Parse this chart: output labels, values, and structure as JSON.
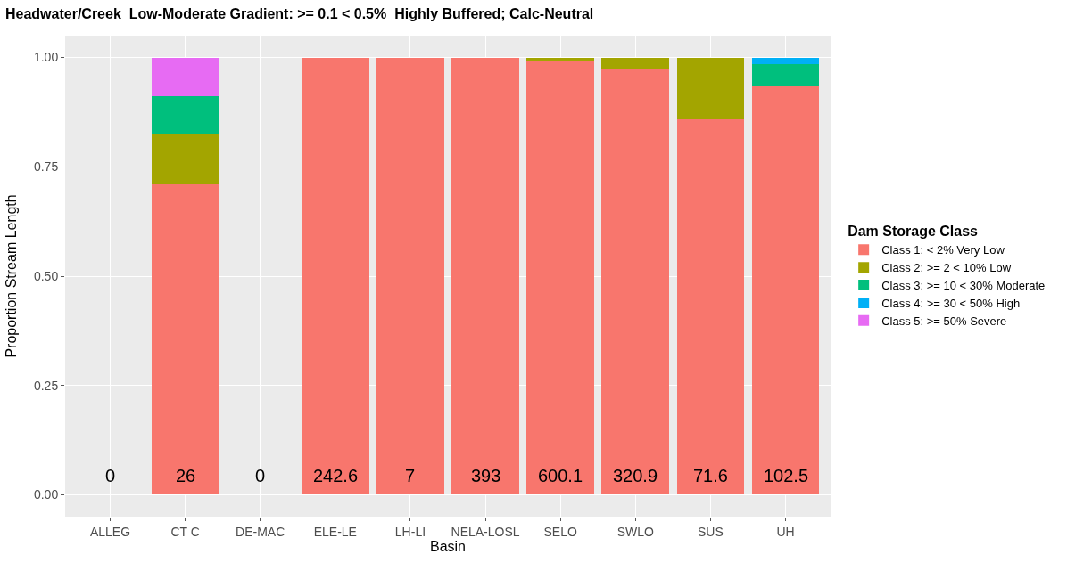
{
  "chart_data": {
    "type": "bar",
    "stacked": true,
    "title": "Headwater/Creek_Low-Moderate Gradient: >= 0.1 < 0.5%_Highly Buffered; Calc-Neutral",
    "xlabel": "Basin",
    "ylabel": "Proportion Stream Length",
    "legend_title": "Dam Storage Class",
    "categories": [
      "ALLEG",
      "CT C",
      "DE-MAC",
      "ELE-LE",
      "LH-LI",
      "NELA-LOSL",
      "SELO",
      "SWLO",
      "SUS",
      "UH"
    ],
    "series": [
      {
        "name": "Class 1: < 2% Very Low",
        "color": "#f8766d",
        "values": [
          null,
          0.71,
          null,
          1.0,
          1.0,
          1.0,
          0.992,
          0.975,
          0.858,
          0.933
        ]
      },
      {
        "name": "Class 2: >= 2 < 10% Low",
        "color": "#a3a500",
        "values": [
          null,
          0.115,
          null,
          null,
          null,
          null,
          0.008,
          0.025,
          0.142,
          null
        ]
      },
      {
        "name": "Class 3: >= 10 < 30% Moderate",
        "color": "#00bf7d",
        "values": [
          null,
          0.087,
          null,
          null,
          null,
          null,
          null,
          null,
          null,
          0.052
        ]
      },
      {
        "name": "Class 4: >= 30 < 50% High",
        "color": "#00b0f6",
        "values": [
          null,
          null,
          null,
          null,
          null,
          null,
          null,
          null,
          null,
          0.015
        ]
      },
      {
        "name": "Class 5: >= 50% Severe",
        "color": "#e76bf3",
        "values": [
          null,
          0.088,
          null,
          null,
          null,
          null,
          null,
          null,
          null,
          null
        ]
      }
    ],
    "ylim": [
      -0.05,
      1.05
    ],
    "yticks": [
      {
        "value": 0,
        "label": "0.00"
      },
      {
        "value": 0.25,
        "label": "0.25"
      },
      {
        "value": 0.5,
        "label": "0.50"
      },
      {
        "value": 0.75,
        "label": "0.75"
      },
      {
        "value": 1,
        "label": "1.00"
      }
    ],
    "grid": true,
    "legend": "right",
    "annotations": [
      "0",
      "26",
      "0",
      "242.6",
      "7",
      "393",
      "600.1",
      "320.9",
      "71.6",
      "102.5"
    ]
  }
}
